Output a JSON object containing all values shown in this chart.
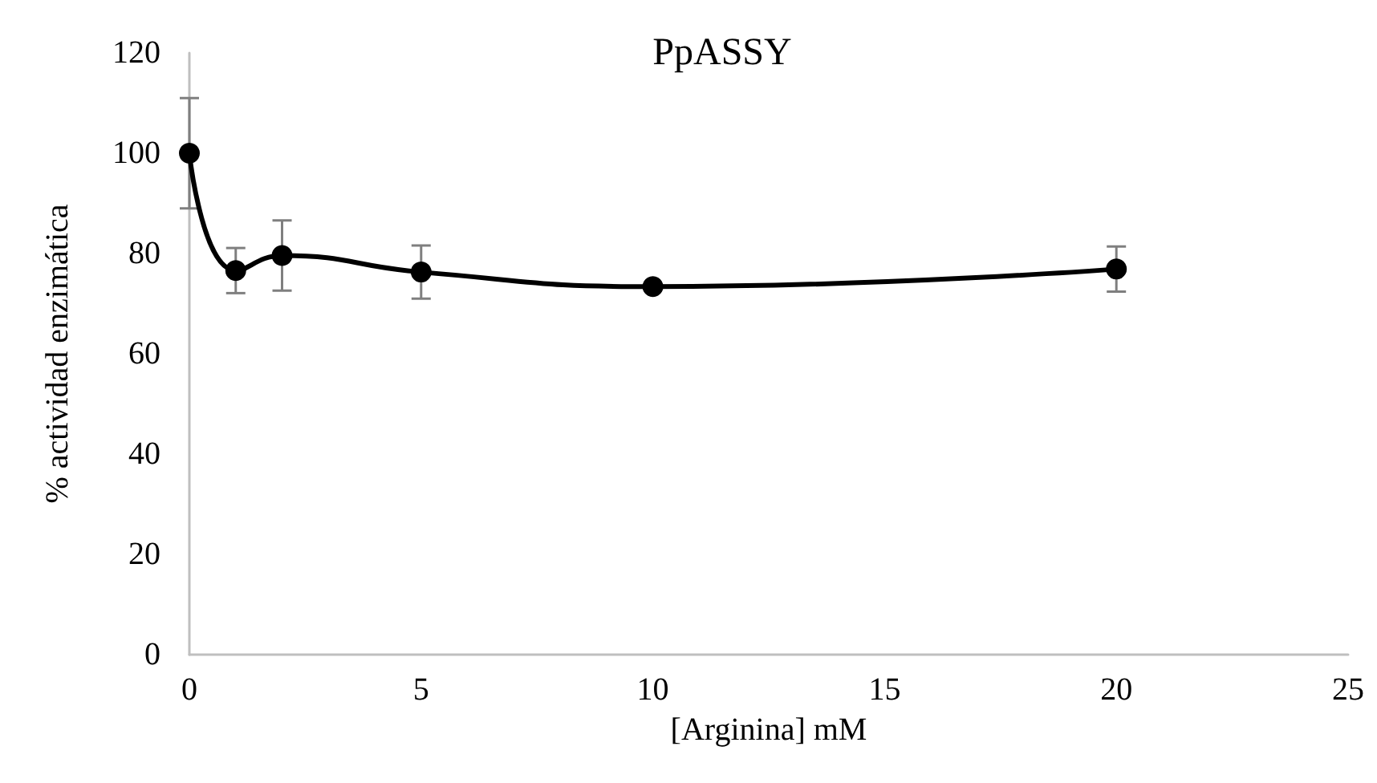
{
  "chart_data": {
    "type": "line",
    "title": "PpASSY",
    "xlabel": "[Arginina] mM",
    "ylabel": "% actividad enzimática",
    "x": [
      0,
      1,
      2,
      5,
      10,
      20
    ],
    "series": [
      {
        "color": "#000000",
        "values": [
          100,
          76.6,
          79.6,
          76.3,
          73.4,
          76.9
        ],
        "errors": [
          11,
          4.5,
          7,
          5.3,
          null,
          4.5
        ]
      }
    ],
    "xlim": [
      0,
      25
    ],
    "xticks": [
      0,
      5,
      10,
      15,
      20,
      25
    ],
    "ylim": [
      0,
      120
    ],
    "yticks": [
      0,
      20,
      40,
      60,
      80,
      100,
      120
    ],
    "grid": false,
    "marker": "circle",
    "line_style": "solid"
  }
}
